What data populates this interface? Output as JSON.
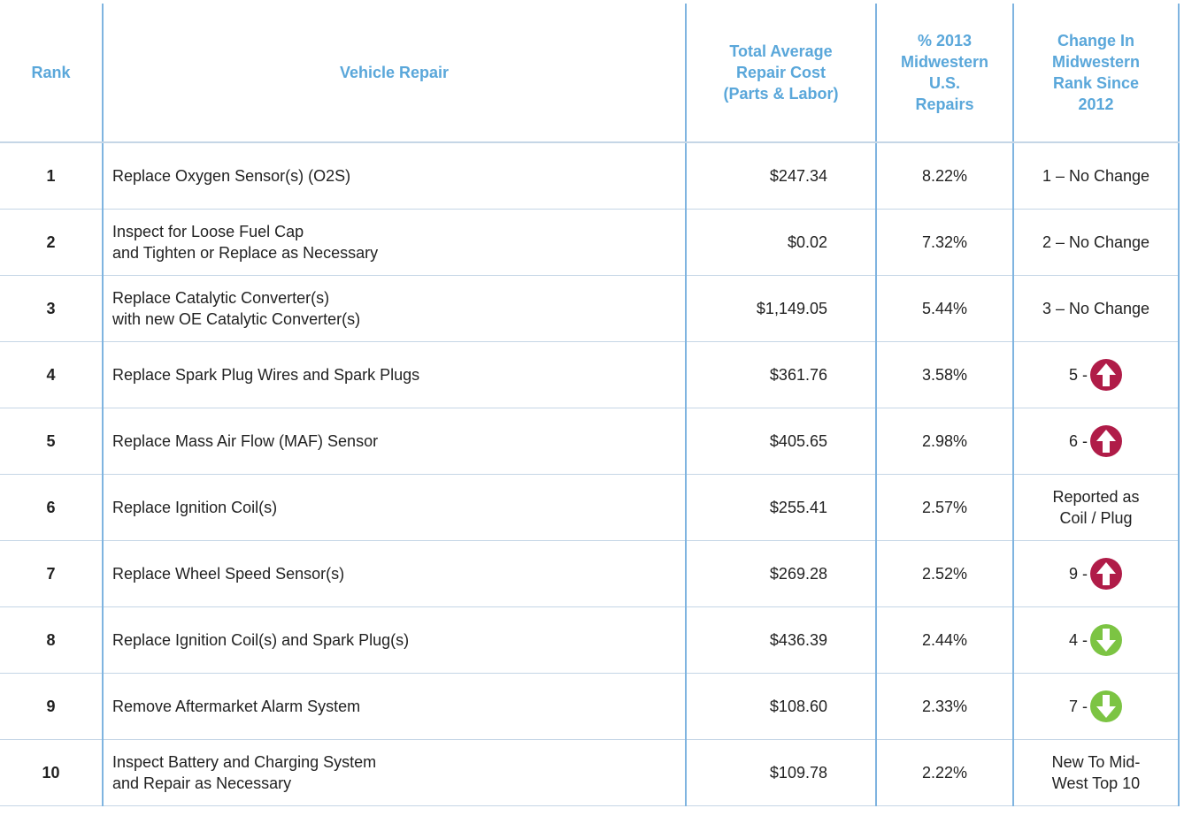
{
  "table": {
    "headers": [
      "Rank",
      "Vehicle Repair",
      "Total Average\nRepair Cost\n(Parts & Labor)",
      "% 2013\nMidwestern\nU.S.\nRepairs",
      "Change In\nMidwestern\nRank Since\n2012"
    ],
    "rows": [
      {
        "rank": "1",
        "repair": "Replace Oxygen Sensor(s) (O2S)",
        "cost": "$247.34",
        "share": "8.22%",
        "change": "1 – No Change"
      },
      {
        "rank": "2",
        "repair": "Inspect for Loose Fuel Cap\nand Tighten or Replace as Necessary",
        "cost": "$0.02",
        "share": "7.32%",
        "change": "2 – No Change"
      },
      {
        "rank": "3",
        "repair": "Replace Catalytic Converter(s)\nwith new OE Catalytic Converter(s)",
        "cost": "$1,149.05",
        "share": "5.44%",
        "change": "3 – No Change"
      },
      {
        "rank": "4",
        "repair": "Replace Spark Plug Wires and Spark Plugs",
        "cost": "$361.76",
        "share": "3.58%",
        "change": "5 -",
        "trend": "up"
      },
      {
        "rank": "5",
        "repair": "Replace Mass Air Flow (MAF) Sensor",
        "cost": "$405.65",
        "share": "2.98%",
        "change": "6 -",
        "trend": "up"
      },
      {
        "rank": "6",
        "repair": "Replace Ignition Coil(s)",
        "cost": "$255.41",
        "share": "2.57%",
        "change": "Reported as\nCoil / Plug"
      },
      {
        "rank": "7",
        "repair": "Replace Wheel Speed Sensor(s)",
        "cost": "$269.28",
        "share": "2.52%",
        "change": "9 -",
        "trend": "up"
      },
      {
        "rank": "8",
        "repair": "Replace Ignition Coil(s) and Spark Plug(s)",
        "cost": "$436.39",
        "share": "2.44%",
        "change": "4 -",
        "trend": "down"
      },
      {
        "rank": "9",
        "repair": "Remove Aftermarket Alarm System",
        "cost": "$108.60",
        "share": "2.33%",
        "change": "7 -",
        "trend": "down"
      },
      {
        "rank": "10",
        "repair": "Inspect Battery and Charging System\nand Repair as Necessary",
        "cost": "$109.78",
        "share": "2.22%",
        "change": "New To Mid-\nWest Top 10"
      }
    ]
  }
}
